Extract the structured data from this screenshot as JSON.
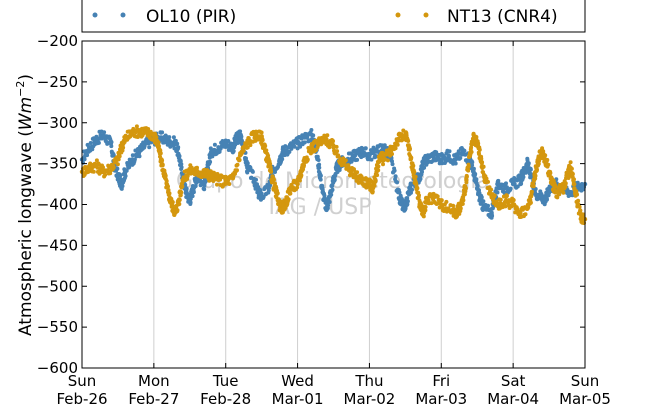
{
  "chart_data": {
    "type": "scatter",
    "ylabel_main": "Atmospheric longwave (",
    "ylabel_unit": "Wm",
    "ylabel_exp": "−2",
    "ylabel_close": ")",
    "ylim": [
      -600,
      -200
    ],
    "yticks": [
      -600,
      -550,
      -500,
      -450,
      -400,
      -350,
      -300,
      -250,
      -200
    ],
    "ytick_labels": [
      "−600",
      "−550",
      "−500",
      "−450",
      "−400",
      "−350",
      "−300",
      "−250",
      "−200"
    ],
    "xlim": [
      0,
      7
    ],
    "xticks": [
      {
        "day": "Sun",
        "date": "Feb-26"
      },
      {
        "day": "Mon",
        "date": "Feb-27"
      },
      {
        "day": "Tue",
        "date": "Feb-28"
      },
      {
        "day": "Wed",
        "date": "Mar-01"
      },
      {
        "day": "Thu",
        "date": "Mar-02"
      },
      {
        "day": "Fri",
        "date": "Mar-03"
      },
      {
        "day": "Sat",
        "date": "Mar-04"
      },
      {
        "day": "Sun",
        "date": "Mar-05"
      }
    ],
    "grid": "vertical",
    "legend_position": "top, outside plot",
    "watermark": [
      "Grupo de Micrometeorologia",
      "IAG / USP"
    ],
    "series": [
      {
        "name": "OL10 (PIR)",
        "color": "#4682b4",
        "points": [
          [
            0.0,
            -345
          ],
          [
            0.1,
            -330
          ],
          [
            0.2,
            -320
          ],
          [
            0.3,
            -315
          ],
          [
            0.4,
            -325
          ],
          [
            0.45,
            -350
          ],
          [
            0.5,
            -365
          ],
          [
            0.55,
            -375
          ],
          [
            0.6,
            -360
          ],
          [
            0.7,
            -345
          ],
          [
            0.8,
            -335
          ],
          [
            0.9,
            -325
          ],
          [
            1.0,
            -320
          ],
          [
            1.1,
            -318
          ],
          [
            1.2,
            -322
          ],
          [
            1.3,
            -325
          ],
          [
            1.35,
            -340
          ],
          [
            1.4,
            -365
          ],
          [
            1.45,
            -385
          ],
          [
            1.5,
            -395
          ],
          [
            1.55,
            -380
          ],
          [
            1.6,
            -365
          ],
          [
            1.7,
            -375
          ],
          [
            1.75,
            -355
          ],
          [
            1.8,
            -335
          ],
          [
            1.9,
            -330
          ],
          [
            2.0,
            -325
          ],
          [
            2.1,
            -330
          ],
          [
            2.15,
            -320
          ],
          [
            2.2,
            -315
          ],
          [
            2.25,
            -330
          ],
          [
            2.3,
            -355
          ],
          [
            2.4,
            -370
          ],
          [
            2.45,
            -385
          ],
          [
            2.5,
            -390
          ],
          [
            2.6,
            -380
          ],
          [
            2.65,
            -360
          ],
          [
            2.75,
            -345
          ],
          [
            2.8,
            -335
          ],
          [
            2.9,
            -330
          ],
          [
            3.0,
            -325
          ],
          [
            3.1,
            -318
          ],
          [
            3.2,
            -315
          ],
          [
            3.25,
            -330
          ],
          [
            3.3,
            -355
          ],
          [
            3.35,
            -385
          ],
          [
            3.4,
            -405
          ],
          [
            3.45,
            -390
          ],
          [
            3.5,
            -370
          ],
          [
            3.55,
            -355
          ],
          [
            3.6,
            -350
          ],
          [
            3.7,
            -345
          ],
          [
            3.8,
            -340
          ],
          [
            3.9,
            -335
          ],
          [
            4.0,
            -340
          ],
          [
            4.1,
            -335
          ],
          [
            4.2,
            -330
          ],
          [
            4.3,
            -345
          ],
          [
            4.4,
            -385
          ],
          [
            4.45,
            -400
          ],
          [
            4.5,
            -405
          ],
          [
            4.55,
            -385
          ],
          [
            4.6,
            -375
          ],
          [
            4.7,
            -365
          ],
          [
            4.75,
            -350
          ],
          [
            4.8,
            -345
          ],
          [
            4.9,
            -340
          ],
          [
            5.0,
            -345
          ],
          [
            5.1,
            -340
          ],
          [
            5.2,
            -345
          ],
          [
            5.3,
            -335
          ],
          [
            5.4,
            -345
          ],
          [
            5.45,
            -360
          ],
          [
            5.5,
            -380
          ],
          [
            5.55,
            -395
          ],
          [
            5.6,
            -405
          ],
          [
            5.7,
            -410
          ],
          [
            5.75,
            -390
          ],
          [
            5.8,
            -375
          ],
          [
            5.9,
            -380
          ],
          [
            6.0,
            -375
          ],
          [
            6.1,
            -370
          ],
          [
            6.15,
            -360
          ],
          [
            6.2,
            -350
          ],
          [
            6.25,
            -365
          ],
          [
            6.3,
            -385
          ],
          [
            6.4,
            -390
          ],
          [
            6.45,
            -395
          ],
          [
            6.5,
            -380
          ],
          [
            6.6,
            -375
          ],
          [
            6.7,
            -380
          ],
          [
            6.8,
            -385
          ],
          [
            6.9,
            -378
          ],
          [
            7.0,
            -375
          ]
        ]
      },
      {
        "name": "NT13 (CNR4)",
        "color": "#d4970e",
        "points": [
          [
            0.0,
            -360
          ],
          [
            0.1,
            -355
          ],
          [
            0.2,
            -352
          ],
          [
            0.3,
            -360
          ],
          [
            0.4,
            -355
          ],
          [
            0.5,
            -345
          ],
          [
            0.55,
            -330
          ],
          [
            0.6,
            -320
          ],
          [
            0.7,
            -312
          ],
          [
            0.8,
            -310
          ],
          [
            0.9,
            -312
          ],
          [
            1.0,
            -315
          ],
          [
            1.05,
            -325
          ],
          [
            1.1,
            -345
          ],
          [
            1.15,
            -365
          ],
          [
            1.2,
            -385
          ],
          [
            1.25,
            -400
          ],
          [
            1.3,
            -410
          ],
          [
            1.35,
            -395
          ],
          [
            1.4,
            -370
          ],
          [
            1.5,
            -358
          ],
          [
            1.6,
            -360
          ],
          [
            1.7,
            -362
          ],
          [
            1.8,
            -365
          ],
          [
            1.9,
            -370
          ],
          [
            2.0,
            -372
          ],
          [
            2.1,
            -368
          ],
          [
            2.2,
            -340
          ],
          [
            2.3,
            -325
          ],
          [
            2.4,
            -315
          ],
          [
            2.5,
            -318
          ],
          [
            2.55,
            -335
          ],
          [
            2.6,
            -350
          ],
          [
            2.65,
            -370
          ],
          [
            2.7,
            -385
          ],
          [
            2.75,
            -400
          ],
          [
            2.8,
            -405
          ],
          [
            2.85,
            -395
          ],
          [
            2.9,
            -380
          ],
          [
            3.0,
            -375
          ],
          [
            3.05,
            -360
          ],
          [
            3.1,
            -345
          ],
          [
            3.2,
            -330
          ],
          [
            3.3,
            -325
          ],
          [
            3.4,
            -320
          ],
          [
            3.5,
            -330
          ],
          [
            3.6,
            -345
          ],
          [
            3.7,
            -355
          ],
          [
            3.8,
            -365
          ],
          [
            3.9,
            -370
          ],
          [
            4.0,
            -375
          ],
          [
            4.05,
            -380
          ],
          [
            4.1,
            -360
          ],
          [
            4.15,
            -340
          ],
          [
            4.2,
            -345
          ],
          [
            4.3,
            -335
          ],
          [
            4.4,
            -320
          ],
          [
            4.5,
            -315
          ],
          [
            4.55,
            -330
          ],
          [
            4.6,
            -355
          ],
          [
            4.65,
            -375
          ],
          [
            4.7,
            -400
          ],
          [
            4.75,
            -410
          ],
          [
            4.8,
            -395
          ],
          [
            4.9,
            -390
          ],
          [
            5.0,
            -400
          ],
          [
            5.1,
            -405
          ],
          [
            5.2,
            -410
          ],
          [
            5.25,
            -405
          ],
          [
            5.3,
            -395
          ],
          [
            5.35,
            -370
          ],
          [
            5.4,
            -340
          ],
          [
            5.45,
            -320
          ],
          [
            5.5,
            -325
          ],
          [
            5.55,
            -345
          ],
          [
            5.6,
            -365
          ],
          [
            5.7,
            -390
          ],
          [
            5.8,
            -400
          ],
          [
            5.9,
            -395
          ],
          [
            6.0,
            -400
          ],
          [
            6.1,
            -410
          ],
          [
            6.2,
            -405
          ],
          [
            6.25,
            -390
          ],
          [
            6.3,
            -365
          ],
          [
            6.35,
            -345
          ],
          [
            6.4,
            -335
          ],
          [
            6.45,
            -345
          ],
          [
            6.5,
            -360
          ],
          [
            6.55,
            -375
          ],
          [
            6.6,
            -385
          ],
          [
            6.7,
            -380
          ],
          [
            6.75,
            -365
          ],
          [
            6.8,
            -355
          ],
          [
            6.85,
            -375
          ],
          [
            6.9,
            -400
          ],
          [
            6.95,
            -415
          ],
          [
            7.0,
            -418
          ]
        ]
      }
    ]
  }
}
